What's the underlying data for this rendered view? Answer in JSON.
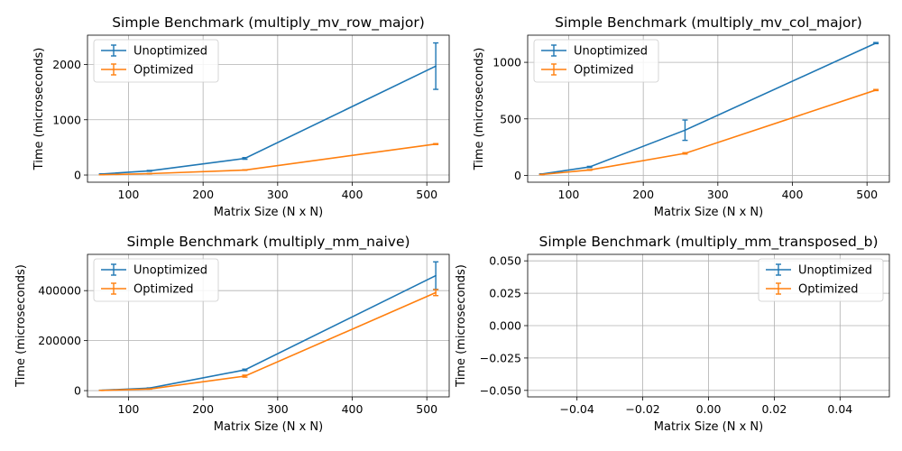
{
  "chart_data": [
    {
      "type": "line",
      "title": "Simple Benchmark (multiply_mv_row_major)",
      "xlabel": "Matrix Size (N x N)",
      "ylabel": "Time (microseconds)",
      "xlim": [
        45,
        530
      ],
      "ylim": [
        -130,
        2530
      ],
      "xticks": [
        100,
        200,
        300,
        400,
        500
      ],
      "yticks": [
        0,
        1000,
        2000
      ],
      "xtick_labels": [
        "100",
        "200",
        "300",
        "400",
        "500"
      ],
      "ytick_labels": [
        "0",
        "1000",
        "2000"
      ],
      "grid": true,
      "legend_position": "top-left",
      "series": [
        {
          "name": "Unoptimized",
          "color": "#1f77b4",
          "x": [
            64,
            128,
            256,
            512
          ],
          "y": [
            18,
            75,
            300,
            1970
          ],
          "err": [
            3,
            8,
            15,
            420
          ]
        },
        {
          "name": "Optimized",
          "color": "#ff7f0e",
          "x": [
            64,
            128,
            256,
            512
          ],
          "y": [
            5,
            25,
            90,
            560
          ],
          "err": [
            1,
            2,
            4,
            8
          ]
        }
      ]
    },
    {
      "type": "line",
      "title": "Simple Benchmark (multiply_mv_col_major)",
      "xlabel": "Matrix Size (N x N)",
      "ylabel": "Time (microseconds)",
      "xlim": [
        45,
        530
      ],
      "ylim": [
        -60,
        1240
      ],
      "xticks": [
        100,
        200,
        300,
        400,
        500
      ],
      "yticks": [
        0,
        500,
        1000
      ],
      "xtick_labels": [
        "100",
        "200",
        "300",
        "400",
        "500"
      ],
      "ytick_labels": [
        "0",
        "500",
        "1000"
      ],
      "grid": true,
      "legend_position": "top-left",
      "series": [
        {
          "name": "Unoptimized",
          "color": "#1f77b4",
          "x": [
            64,
            128,
            256,
            512
          ],
          "y": [
            12,
            75,
            400,
            1170
          ],
          "err": [
            2,
            5,
            90,
            5
          ]
        },
        {
          "name": "Optimized",
          "color": "#ff7f0e",
          "x": [
            64,
            128,
            256,
            512
          ],
          "y": [
            8,
            48,
            195,
            755
          ],
          "err": [
            1,
            3,
            6,
            5
          ]
        }
      ]
    },
    {
      "type": "line",
      "title": "Simple Benchmark (multiply_mm_naive)",
      "xlabel": "Matrix Size (N x N)",
      "ylabel": "Time (microseconds)",
      "xlim": [
        45,
        530
      ],
      "ylim": [
        -25000,
        545000
      ],
      "xticks": [
        100,
        200,
        300,
        400,
        500
      ],
      "yticks": [
        0,
        200000,
        400000
      ],
      "xtick_labels": [
        "100",
        "200",
        "300",
        "400",
        "500"
      ],
      "ytick_labels": [
        "0",
        "200000",
        "400000"
      ],
      "grid": true,
      "legend_position": "top-left",
      "series": [
        {
          "name": "Unoptimized",
          "color": "#1f77b4",
          "x": [
            64,
            128,
            256,
            512
          ],
          "y": [
            1500,
            10000,
            83000,
            460000
          ],
          "err": [
            200,
            1000,
            3000,
            55000
          ]
        },
        {
          "name": "Optimized",
          "color": "#ff7f0e",
          "x": [
            64,
            128,
            256,
            512
          ],
          "y": [
            900,
            6500,
            58000,
            392000
          ],
          "err": [
            100,
            600,
            4000,
            12000
          ]
        }
      ]
    },
    {
      "type": "line",
      "title": "Simple Benchmark (multiply_mm_transposed_b)",
      "xlabel": "Matrix Size (N x N)",
      "ylabel": "Time (microseconds)",
      "xlim": [
        -0.055,
        0.055
      ],
      "ylim": [
        -0.055,
        0.055
      ],
      "xticks": [
        -0.04,
        -0.02,
        0.0,
        0.02,
        0.04
      ],
      "yticks": [
        -0.05,
        -0.025,
        0.0,
        0.025,
        0.05
      ],
      "xtick_labels": [
        "−0.04",
        "−0.02",
        "0.00",
        "0.02",
        "0.04"
      ],
      "ytick_labels": [
        "−0.050",
        "−0.025",
        "0.000",
        "0.025",
        "0.050"
      ],
      "grid": true,
      "legend_position": "top-right",
      "series": [
        {
          "name": "Unoptimized",
          "color": "#1f77b4",
          "x": [],
          "y": [],
          "err": []
        },
        {
          "name": "Optimized",
          "color": "#ff7f0e",
          "x": [],
          "y": [],
          "err": []
        }
      ]
    }
  ]
}
